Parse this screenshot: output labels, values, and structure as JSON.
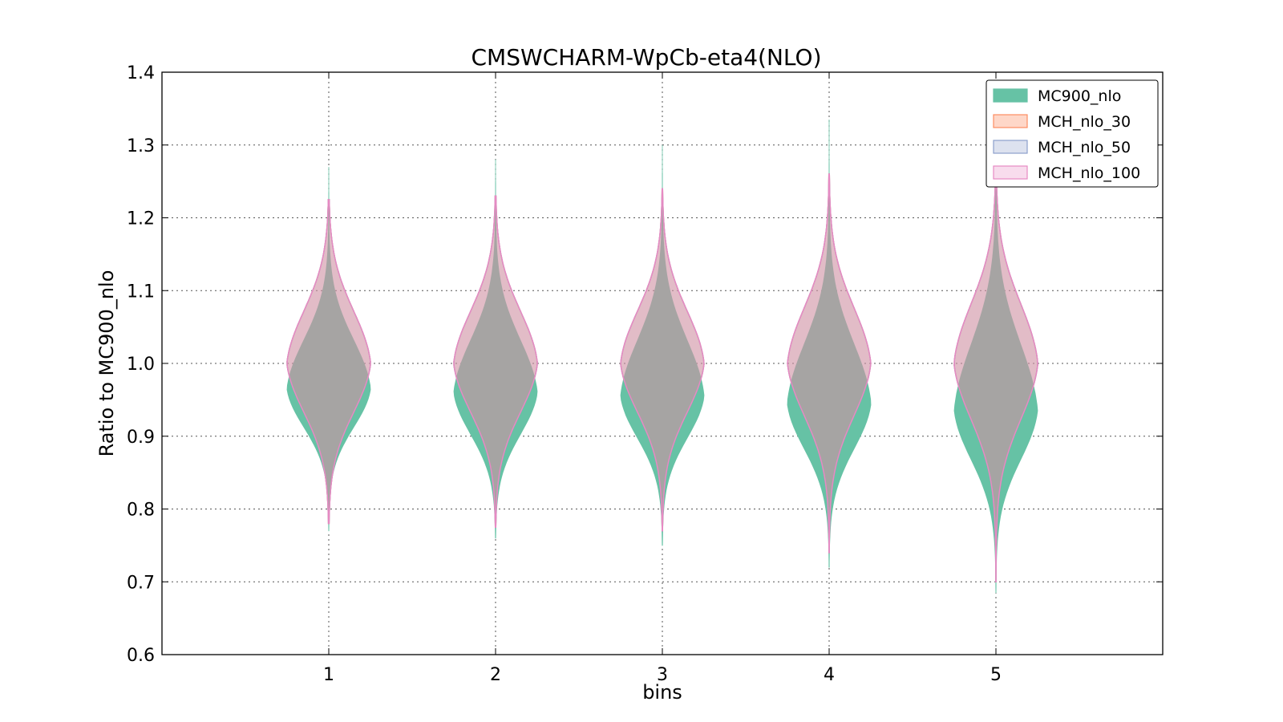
{
  "chart_data": {
    "type": "violin",
    "title": "CMSWCHARM-WpCb-eta4(NLO)",
    "xlabel": "bins",
    "ylabel": "Ratio to MC900_nlo",
    "xlim": [
      0,
      6
    ],
    "ylim": [
      0.6,
      1.4
    ],
    "x_ticks": [
      1,
      2,
      3,
      4,
      5
    ],
    "y_ticks": [
      0.6,
      0.7,
      0.8,
      0.9,
      1.0,
      1.1,
      1.2,
      1.3,
      1.4
    ],
    "y_tick_labels": [
      "0.6",
      "0.7",
      "0.8",
      "0.9",
      "1.0",
      "1.1",
      "1.2",
      "1.3",
      "1.4"
    ],
    "grid": true,
    "legend_position": "top-right",
    "categories": [
      1,
      2,
      3,
      4,
      5
    ],
    "series": [
      {
        "name": "MC900_nlo",
        "color": "#66c2a5",
        "opacity": 1.0,
        "violins": [
          {
            "min": 0.77,
            "max": 1.27,
            "center": 0.965,
            "spread_low": 0.055,
            "spread_high": 0.07
          },
          {
            "min": 0.76,
            "max": 1.28,
            "center": 0.96,
            "spread_low": 0.06,
            "spread_high": 0.075
          },
          {
            "min": 0.75,
            "max": 1.3,
            "center": 0.955,
            "spread_low": 0.06,
            "spread_high": 0.08
          },
          {
            "min": 0.72,
            "max": 1.335,
            "center": 0.945,
            "spread_low": 0.065,
            "spread_high": 0.085
          },
          {
            "min": 0.685,
            "max": 1.33,
            "center": 0.935,
            "spread_low": 0.07,
            "spread_high": 0.095
          }
        ]
      },
      {
        "name": "MCH_nlo_30",
        "color": "#fc8d62",
        "opacity": 0.35,
        "violins": [
          {
            "min": 0.78,
            "max": 1.225,
            "center": 1.0,
            "spread_low": 0.07,
            "spread_high": 0.075
          },
          {
            "min": 0.775,
            "max": 1.23,
            "center": 1.0,
            "spread_low": 0.07,
            "spread_high": 0.075
          },
          {
            "min": 0.77,
            "max": 1.24,
            "center": 1.0,
            "spread_low": 0.07,
            "spread_high": 0.075
          },
          {
            "min": 0.74,
            "max": 1.26,
            "center": 1.0,
            "spread_low": 0.075,
            "spread_high": 0.08
          },
          {
            "min": 0.7,
            "max": 1.28,
            "center": 1.0,
            "spread_low": 0.08,
            "spread_high": 0.085
          }
        ]
      },
      {
        "name": "MCH_nlo_50",
        "color": "#8da0cb",
        "opacity": 0.25,
        "violins": [
          {
            "min": 0.78,
            "max": 1.225,
            "center": 1.0,
            "spread_low": 0.07,
            "spread_high": 0.075
          },
          {
            "min": 0.775,
            "max": 1.23,
            "center": 1.0,
            "spread_low": 0.07,
            "spread_high": 0.075
          },
          {
            "min": 0.77,
            "max": 1.24,
            "center": 1.0,
            "spread_low": 0.07,
            "spread_high": 0.075
          },
          {
            "min": 0.74,
            "max": 1.26,
            "center": 1.0,
            "spread_low": 0.075,
            "spread_high": 0.08
          },
          {
            "min": 0.7,
            "max": 1.28,
            "center": 1.0,
            "spread_low": 0.08,
            "spread_high": 0.085
          }
        ]
      },
      {
        "name": "MCH_nlo_100",
        "color": "#e78ac3",
        "opacity": 0.2,
        "violins": [
          {
            "min": 0.78,
            "max": 1.225,
            "center": 1.0,
            "spread_low": 0.07,
            "spread_high": 0.075
          },
          {
            "min": 0.775,
            "max": 1.23,
            "center": 1.0,
            "spread_low": 0.07,
            "spread_high": 0.075
          },
          {
            "min": 0.77,
            "max": 1.24,
            "center": 1.0,
            "spread_low": 0.07,
            "spread_high": 0.075
          },
          {
            "min": 0.74,
            "max": 1.26,
            "center": 1.0,
            "spread_low": 0.075,
            "spread_high": 0.08
          },
          {
            "min": 0.7,
            "max": 1.28,
            "center": 1.0,
            "spread_low": 0.08,
            "spread_high": 0.085
          }
        ]
      }
    ]
  }
}
